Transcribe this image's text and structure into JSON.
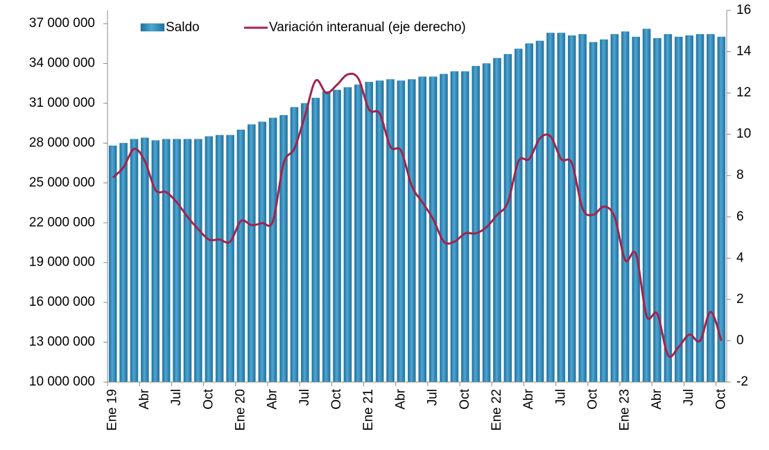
{
  "chart_data": {
    "type": "bar_line",
    "categories": [
      "Ene 19",
      null,
      null,
      "Abr",
      null,
      null,
      "Jul",
      null,
      null,
      "Oct",
      null,
      null,
      "Ene 20",
      null,
      null,
      "Abr",
      null,
      null,
      "Jul",
      null,
      null,
      "Oct",
      null,
      null,
      "Ene 21",
      null,
      null,
      "Abr",
      null,
      null,
      "Jul",
      null,
      null,
      "Oct",
      null,
      null,
      "Ene 22",
      null,
      null,
      "Abr",
      null,
      null,
      "Jul",
      null,
      null,
      "Oct",
      null,
      null,
      "Ene 23",
      null,
      null,
      "Abr",
      null,
      null,
      "Jul",
      null,
      null,
      "Oct"
    ],
    "series": [
      {
        "name": "Saldo",
        "type": "bar",
        "color": "#2f86b4",
        "values": [
          27800000,
          28000000,
          28300000,
          28400000,
          28200000,
          28300000,
          28300000,
          28300000,
          28300000,
          28500000,
          28600000,
          28600000,
          29000000,
          29400000,
          29600000,
          29900000,
          30100000,
          30700000,
          31000000,
          31400000,
          31900000,
          32000000,
          32200000,
          32400000,
          32600000,
          32700000,
          32800000,
          32700000,
          32800000,
          33000000,
          33000000,
          33200000,
          33400000,
          33400000,
          33800000,
          34000000,
          34400000,
          34700000,
          35100000,
          35500000,
          35700000,
          36300000,
          36300000,
          36100000,
          36200000,
          35600000,
          35800000,
          36200000,
          36400000,
          36000000,
          36600000,
          35900000,
          36200000,
          36000000,
          36100000,
          36200000,
          36200000,
          36000000
        ]
      },
      {
        "name": "Variación interanual (eje derecho)",
        "type": "line",
        "axis": "y2",
        "color": "#a3234b",
        "values": [
          7.9,
          8.4,
          9.3,
          8.7,
          7.3,
          7.2,
          6.7,
          6.0,
          5.4,
          4.9,
          4.9,
          4.8,
          5.8,
          5.6,
          5.7,
          5.8,
          8.6,
          9.3,
          10.9,
          12.6,
          12.0,
          12.4,
          12.9,
          12.7,
          11.2,
          11.0,
          9.4,
          9.2,
          7.5,
          6.7,
          5.9,
          4.8,
          4.8,
          5.2,
          5.2,
          5.5,
          6.1,
          6.7,
          8.7,
          8.8,
          9.8,
          9.9,
          8.8,
          8.6,
          6.4,
          6.1,
          6.5,
          6.0,
          3.9,
          4.2,
          1.2,
          1.3,
          -0.7,
          -0.3,
          0.3,
          0.0,
          1.4,
          0.0
        ]
      }
    ],
    "ylim": [
      10000000,
      38000000
    ],
    "yticks": [
      {
        "value": 10000000,
        "label": "10 000 000"
      },
      {
        "value": 13000000,
        "label": "13 000 000"
      },
      {
        "value": 16000000,
        "label": "16 000 000"
      },
      {
        "value": 19000000,
        "label": "19 000 000"
      },
      {
        "value": 22000000,
        "label": "22 000 000"
      },
      {
        "value": 25000000,
        "label": "25 000 000"
      },
      {
        "value": 28000000,
        "label": "28 000 000"
      },
      {
        "value": 31000000,
        "label": "31 000 000"
      },
      {
        "value": 34000000,
        "label": "34 000 000"
      },
      {
        "value": 37000000,
        "label": "37 000 000"
      }
    ],
    "y2lim": [
      -2,
      16
    ],
    "y2ticks": [
      -2,
      0,
      2,
      4,
      6,
      8,
      10,
      12,
      14,
      16
    ],
    "legend": "top"
  }
}
